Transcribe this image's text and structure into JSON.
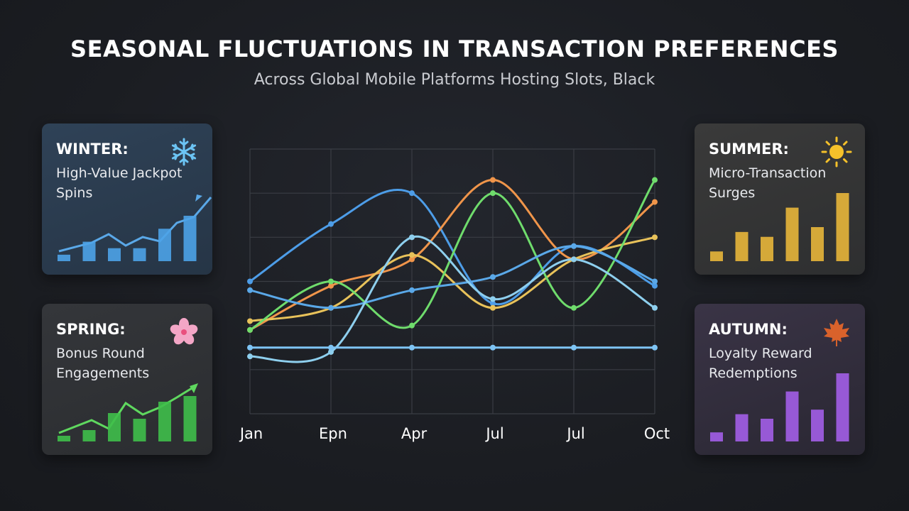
{
  "header": {
    "title": "SEASONAL FLUCTUATIONS IN TRANSACTION PREFERENCES",
    "subtitle": "Across Global Mobile Platforms Hosting Slots, Black"
  },
  "cards": {
    "winter": {
      "season": "WINTER:",
      "desc": "High-Value Jackpot Spins",
      "icon": "snowflake-icon",
      "color": "#4da3e8",
      "bars": [
        1,
        3,
        2,
        2,
        5,
        7
      ]
    },
    "spring": {
      "season": "SPRING:",
      "desc": "Bonus Round Engagements",
      "icon": "cherry-blossom-icon",
      "color": "#3fbf4a",
      "bars": [
        1,
        2,
        5,
        4,
        7,
        8
      ]
    },
    "summer": {
      "season": "SUMMER:",
      "desc": "Micro-Transaction Surges",
      "icon": "sun-icon",
      "color": "#e8b63a",
      "bars": [
        2,
        6,
        5,
        11,
        7,
        14
      ]
    },
    "autumn": {
      "season": "AUTUMN:",
      "desc": "Loyalty Reward Redemptions",
      "icon": "maple-leaf-icon",
      "color": "#a35ee8",
      "bars": [
        2,
        6,
        5,
        11,
        7,
        15
      ]
    }
  },
  "chart_data": {
    "type": "line",
    "categories": [
      "Jan",
      "Epn",
      "Apr",
      "Jul",
      "Jul",
      "Oct"
    ],
    "ylim": [
      0,
      6
    ],
    "grid": true,
    "series": [
      {
        "color": "#4d9de8",
        "values": [
          3.0,
          4.3,
          5.0,
          2.5,
          3.8,
          2.9
        ]
      },
      {
        "color": "#f0954a",
        "values": [
          1.9,
          2.9,
          3.5,
          5.3,
          3.5,
          4.8
        ]
      },
      {
        "color": "#e8c25a",
        "values": [
          2.1,
          2.4,
          3.6,
          2.4,
          3.5,
          4.0
        ]
      },
      {
        "color": "#6fdc6c",
        "values": [
          1.9,
          3.0,
          2.0,
          5.0,
          2.4,
          5.3
        ]
      },
      {
        "color": "#5aa8e8",
        "values": [
          2.8,
          2.4,
          2.8,
          3.1,
          3.8,
          3.0
        ]
      },
      {
        "color": "#8ecfee",
        "values": [
          1.3,
          1.4,
          4.0,
          2.6,
          3.5,
          2.4
        ]
      },
      {
        "color": "#7ec4f4",
        "values": [
          1.5,
          1.5,
          1.5,
          1.5,
          1.5,
          1.5
        ]
      }
    ]
  }
}
